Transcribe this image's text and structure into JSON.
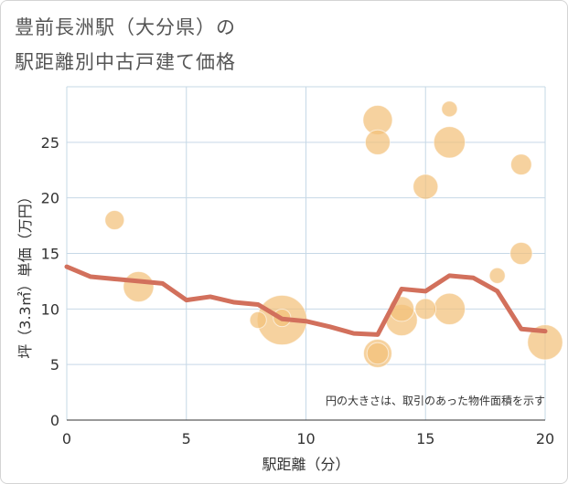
{
  "title": {
    "line1": "豊前長洲駅（大分県）の",
    "line2": "駅距離別中古戸建て価格"
  },
  "chart_data": {
    "type": "scatter",
    "xlabel": "駅距離（分）",
    "ylabel": "坪（3.3㎡）単価（万円）",
    "xlim": [
      0,
      20
    ],
    "ylim": [
      0,
      30
    ],
    "x_ticks": [
      "0",
      "5",
      "10",
      "15",
      "20"
    ],
    "y_ticks": [
      "0",
      "5",
      "10",
      "15",
      "20",
      "25"
    ],
    "note": "円の大きさは、取引のあった物件面積を示す",
    "grid": true,
    "colors": {
      "bubble": "#f3c07a",
      "line": "#d2705c"
    },
    "bubbles": [
      {
        "x": 2,
        "y": 18,
        "size": 1.2
      },
      {
        "x": 3,
        "y": 12,
        "size": 3
      },
      {
        "x": 8,
        "y": 9,
        "size": 0.9
      },
      {
        "x": 9,
        "y": 9,
        "size": 8
      },
      {
        "x": 9,
        "y": 9.2,
        "size": 1
      },
      {
        "x": 13,
        "y": 27,
        "size": 2.8
      },
      {
        "x": 13,
        "y": 25,
        "size": 2
      },
      {
        "x": 13,
        "y": 6,
        "size": 2.6
      },
      {
        "x": 13,
        "y": 6,
        "size": 1.5
      },
      {
        "x": 14,
        "y": 10,
        "size": 2
      },
      {
        "x": 14,
        "y": 9,
        "size": 3.2
      },
      {
        "x": 15,
        "y": 21,
        "size": 2
      },
      {
        "x": 15,
        "y": 10,
        "size": 1.4
      },
      {
        "x": 16,
        "y": 28,
        "size": 0.8
      },
      {
        "x": 16,
        "y": 25,
        "size": 3.2
      },
      {
        "x": 16,
        "y": 10,
        "size": 3.2
      },
      {
        "x": 18,
        "y": 13,
        "size": 0.8
      },
      {
        "x": 19,
        "y": 23,
        "size": 1.4
      },
      {
        "x": 19,
        "y": 15,
        "size": 1.6
      },
      {
        "x": 20,
        "y": 7,
        "size": 4
      }
    ],
    "series": [
      {
        "type": "line",
        "x": [
          0,
          1,
          2,
          3,
          4,
          5,
          6,
          7,
          8,
          9,
          10,
          11,
          12,
          13,
          14,
          15,
          16,
          17,
          18,
          19,
          20
        ],
        "values": [
          13.8,
          12.9,
          12.7,
          12.5,
          12.3,
          10.8,
          11.1,
          10.6,
          10.4,
          9.1,
          8.9,
          8.4,
          7.8,
          7.7,
          11.8,
          11.6,
          13.0,
          12.8,
          11.6,
          8.2,
          8.0
        ]
      }
    ]
  }
}
